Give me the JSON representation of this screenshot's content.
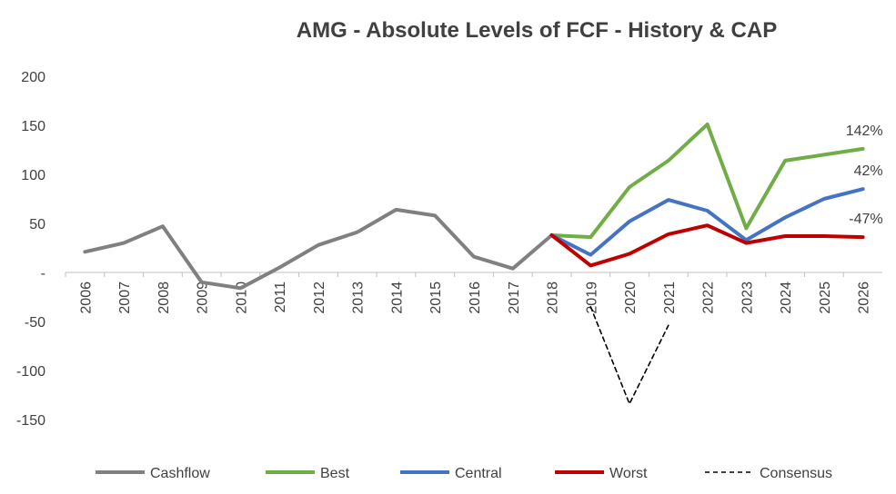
{
  "chart_data": {
    "type": "line",
    "title": "AMG - Absolute Levels of FCF - History & CAP",
    "xlabel": "",
    "ylabel": "",
    "ylim": [
      -150,
      200
    ],
    "y_ticks": [
      {
        "value": 200,
        "label": "200"
      },
      {
        "value": 150,
        "label": "150"
      },
      {
        "value": 100,
        "label": "100"
      },
      {
        "value": 50,
        "label": "50"
      },
      {
        "value": 0,
        "label": "-"
      },
      {
        "value": -50,
        "label": "-50"
      },
      {
        "value": -100,
        "label": "-100"
      },
      {
        "value": -150,
        "label": "-150"
      }
    ],
    "categories": [
      "2006",
      "2007",
      "2008",
      "2009",
      "2010",
      "2011",
      "2012",
      "2013",
      "2014",
      "2015",
      "2016",
      "2017",
      "2018",
      "2019",
      "2020",
      "2021",
      "2022",
      "2023",
      "2024",
      "2025",
      "2026"
    ],
    "series": [
      {
        "name": "Cashflow",
        "color": "#808080",
        "dash": false,
        "values": [
          21,
          30,
          47,
          -10,
          -16,
          5,
          28,
          41,
          64,
          58,
          16,
          4,
          38,
          null,
          null,
          null,
          null,
          null,
          null,
          null,
          null
        ]
      },
      {
        "name": "Best",
        "color": "#70AD47",
        "dash": false,
        "values": [
          null,
          null,
          null,
          null,
          null,
          null,
          null,
          null,
          null,
          null,
          null,
          null,
          38,
          36,
          87,
          114,
          151,
          45,
          114,
          120,
          126
        ]
      },
      {
        "name": "Central",
        "color": "#4472C4",
        "dash": false,
        "values": [
          null,
          null,
          null,
          null,
          null,
          null,
          null,
          null,
          null,
          null,
          null,
          null,
          38,
          18,
          52,
          74,
          63,
          33,
          56,
          75,
          85
        ]
      },
      {
        "name": "Worst",
        "color": "#C00000",
        "dash": false,
        "values": [
          null,
          null,
          null,
          null,
          null,
          null,
          null,
          null,
          null,
          null,
          null,
          null,
          38,
          7,
          19,
          39,
          48,
          30,
          37,
          37,
          36
        ]
      },
      {
        "name": "Consensus",
        "color": "#000000",
        "dash": true,
        "values": [
          null,
          null,
          null,
          null,
          null,
          null,
          null,
          null,
          null,
          null,
          null,
          null,
          null,
          -35,
          -134,
          -54,
          null,
          null,
          null,
          null,
          null
        ]
      }
    ],
    "annotations": [
      {
        "text": "142%",
        "series": "Best"
      },
      {
        "text": "42%",
        "series": "Central"
      },
      {
        "text": "-47%",
        "series": "Worst"
      }
    ],
    "legend": "bottom",
    "grid": false
  }
}
